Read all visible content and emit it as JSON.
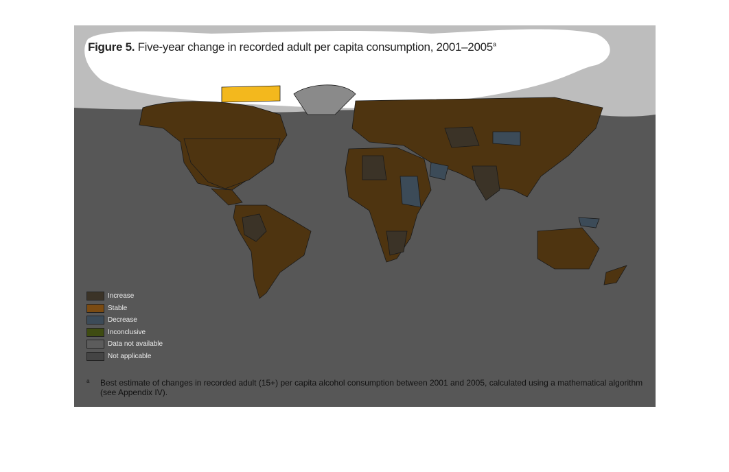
{
  "figure": {
    "label": "Figure 5.",
    "title": "Five-year change in recorded adult per capita consumption, 2001–2005",
    "title_note": "a",
    "legend": [
      {
        "name": "Increase",
        "color": "#3b3327"
      },
      {
        "name": "Stable",
        "color": "#7b4b12"
      },
      {
        "name": "Decrease",
        "color": "#3c4b58"
      },
      {
        "name": "Inconclusive",
        "color": "#3f4c12"
      },
      {
        "name": "Data not available",
        "color": "#5c5c5c"
      },
      {
        "name": "Not applicable",
        "color": "#444444"
      }
    ],
    "footnote": {
      "marker": "a",
      "text": "Best estimate of changes in recorded adult (15+) per capita alcohol consumption between 2001 and 2005, calculated using a mathematical algorithm (see Appendix IV)."
    }
  }
}
